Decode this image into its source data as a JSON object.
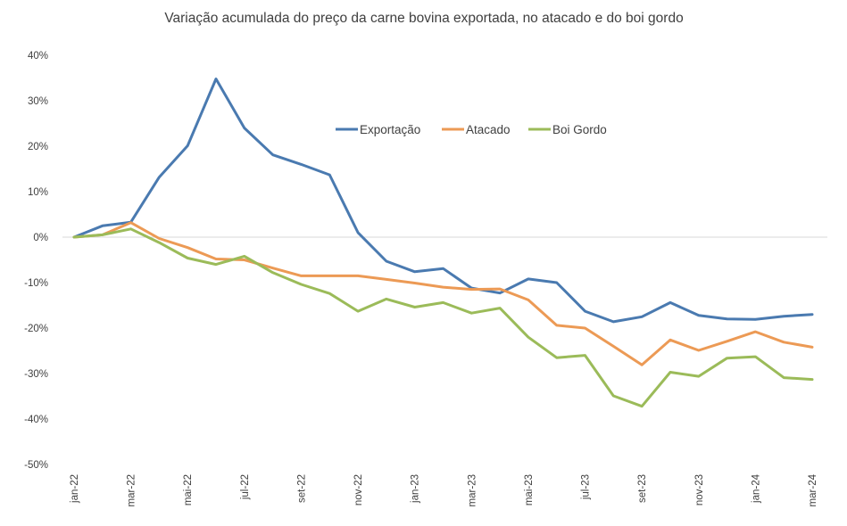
{
  "chart_data": {
    "type": "line",
    "title": "Variação acumulada do preço da carne bovina exportada, no atacado e do boi gordo",
    "xlabel": "",
    "ylabel": "",
    "ylim": [
      -50,
      40
    ],
    "yticks": [
      40,
      30,
      20,
      10,
      0,
      -10,
      -20,
      -30,
      -40,
      -50
    ],
    "ytick_labels": [
      "40%",
      "30%",
      "20%",
      "10%",
      "0%",
      "-10%",
      "-20%",
      "-30%",
      "-40%",
      "-50%"
    ],
    "x": [
      "jan-22",
      "fev-22",
      "mar-22",
      "abr-22",
      "mai-22",
      "jun-22",
      "jul-22",
      "ago-22",
      "set-22",
      "out-22",
      "nov-22",
      "dez-22",
      "jan-23",
      "fev-23",
      "mar-23",
      "abr-23",
      "mai-23",
      "jun-23",
      "jul-23",
      "ago-23",
      "set-23",
      "out-23",
      "nov-23",
      "dez-23",
      "jan-24",
      "fev-24",
      "mar-24"
    ],
    "xtick_labels": [
      "jan-22",
      "mar-22",
      "mai-22",
      "jul-22",
      "set-22",
      "nov-22",
      "jan-23",
      "mar-23",
      "mai-23",
      "jul-23",
      "set-23",
      "nov-23",
      "jan-24",
      "mar-24"
    ],
    "legend_position": "top-center",
    "grid": false,
    "series": [
      {
        "name": "Exportação",
        "color": "#4a7ab0",
        "values": [
          0,
          2.5,
          3.3,
          13.2,
          20.1,
          34.8,
          24.0,
          18.1,
          16.0,
          13.7,
          1.0,
          -5.3,
          -7.6,
          -6.9,
          -11.2,
          -12.3,
          -9.2,
          -10.0,
          -16.3,
          -18.6,
          -17.5,
          -14.4,
          -17.2,
          -18.0,
          -18.1,
          -17.4,
          -17.0
        ]
      },
      {
        "name": "Atacado",
        "color": "#ec9a55",
        "values": [
          0,
          0.5,
          3.2,
          -0.3,
          -2.3,
          -4.8,
          -5.0,
          -6.8,
          -8.5,
          -8.5,
          -8.5,
          -9.3,
          -10.1,
          -11.0,
          -11.5,
          -11.4,
          -13.8,
          -19.4,
          -20.0,
          -24.0,
          -28.1,
          -22.6,
          -24.9,
          -22.9,
          -20.8,
          -23.1,
          -24.2
        ]
      },
      {
        "name": "Boi Gordo",
        "color": "#9bbb59",
        "values": [
          0,
          0.5,
          1.8,
          -1.2,
          -4.6,
          -6.0,
          -4.2,
          -7.8,
          -10.4,
          -12.4,
          -16.3,
          -13.6,
          -15.4,
          -14.4,
          -16.7,
          -15.6,
          -22.0,
          -26.5,
          -26.0,
          -34.9,
          -37.2,
          -29.7,
          -30.6,
          -26.6,
          -26.3,
          -30.9,
          -31.3
        ]
      }
    ]
  }
}
